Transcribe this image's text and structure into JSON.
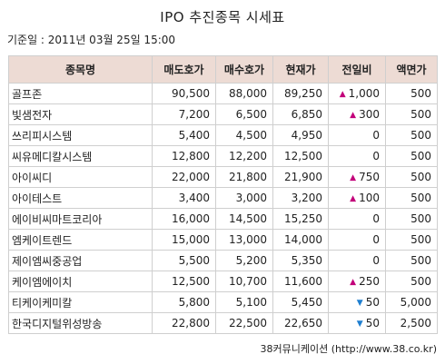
{
  "title": "IPO 추진종목 시세표",
  "base_date": "기준일 : 2011년 03월 25일 15:00",
  "table": {
    "headers": [
      "종목명",
      "매도호가",
      "매수호가",
      "현재가",
      "전일비",
      "액면가"
    ],
    "rows": [
      {
        "name": "골프존",
        "ask": "90,500",
        "bid": "88,000",
        "price": "89,250",
        "dir": "up",
        "change": "1,000",
        "par": "500"
      },
      {
        "name": "빛샘전자",
        "ask": "7,200",
        "bid": "6,500",
        "price": "6,850",
        "dir": "up",
        "change": "300",
        "par": "500"
      },
      {
        "name": "쓰리피시스템",
        "ask": "5,400",
        "bid": "4,500",
        "price": "4,950",
        "dir": "none",
        "change": "0",
        "par": "500"
      },
      {
        "name": "씨유메디칼시스템",
        "ask": "12,800",
        "bid": "12,200",
        "price": "12,500",
        "dir": "none",
        "change": "0",
        "par": "500"
      },
      {
        "name": "아이씨디",
        "ask": "22,000",
        "bid": "21,800",
        "price": "21,900",
        "dir": "up",
        "change": "750",
        "par": "500"
      },
      {
        "name": "아이테스트",
        "ask": "3,400",
        "bid": "3,000",
        "price": "3,200",
        "dir": "up",
        "change": "100",
        "par": "500"
      },
      {
        "name": "에이비씨마트코리아",
        "ask": "16,000",
        "bid": "14,500",
        "price": "15,250",
        "dir": "none",
        "change": "0",
        "par": "500"
      },
      {
        "name": "엠케이트렌드",
        "ask": "15,000",
        "bid": "13,000",
        "price": "14,000",
        "dir": "none",
        "change": "0",
        "par": "500"
      },
      {
        "name": "제이엠씨중공업",
        "ask": "5,500",
        "bid": "5,200",
        "price": "5,350",
        "dir": "none",
        "change": "0",
        "par": "500"
      },
      {
        "name": "케이엠에이치",
        "ask": "12,500",
        "bid": "10,700",
        "price": "11,600",
        "dir": "up",
        "change": "250",
        "par": "500"
      },
      {
        "name": "티케이케미칼",
        "ask": "5,800",
        "bid": "5,100",
        "price": "5,450",
        "dir": "down",
        "change": "50",
        "par": "5,000"
      },
      {
        "name": "한국디지털위성방송",
        "ask": "22,800",
        "bid": "22,500",
        "price": "22,650",
        "dir": "down",
        "change": "50",
        "par": "2,500"
      }
    ]
  },
  "source": "38커뮤니케이션 (http://www.38.co.kr)",
  "colors": {
    "header_bg": "#eddbd4",
    "border": "#cfcfcf",
    "up": "#c2007a",
    "down": "#1f7fd0"
  },
  "icons": {
    "up": "up-triangle-icon",
    "down": "down-triangle-icon"
  }
}
